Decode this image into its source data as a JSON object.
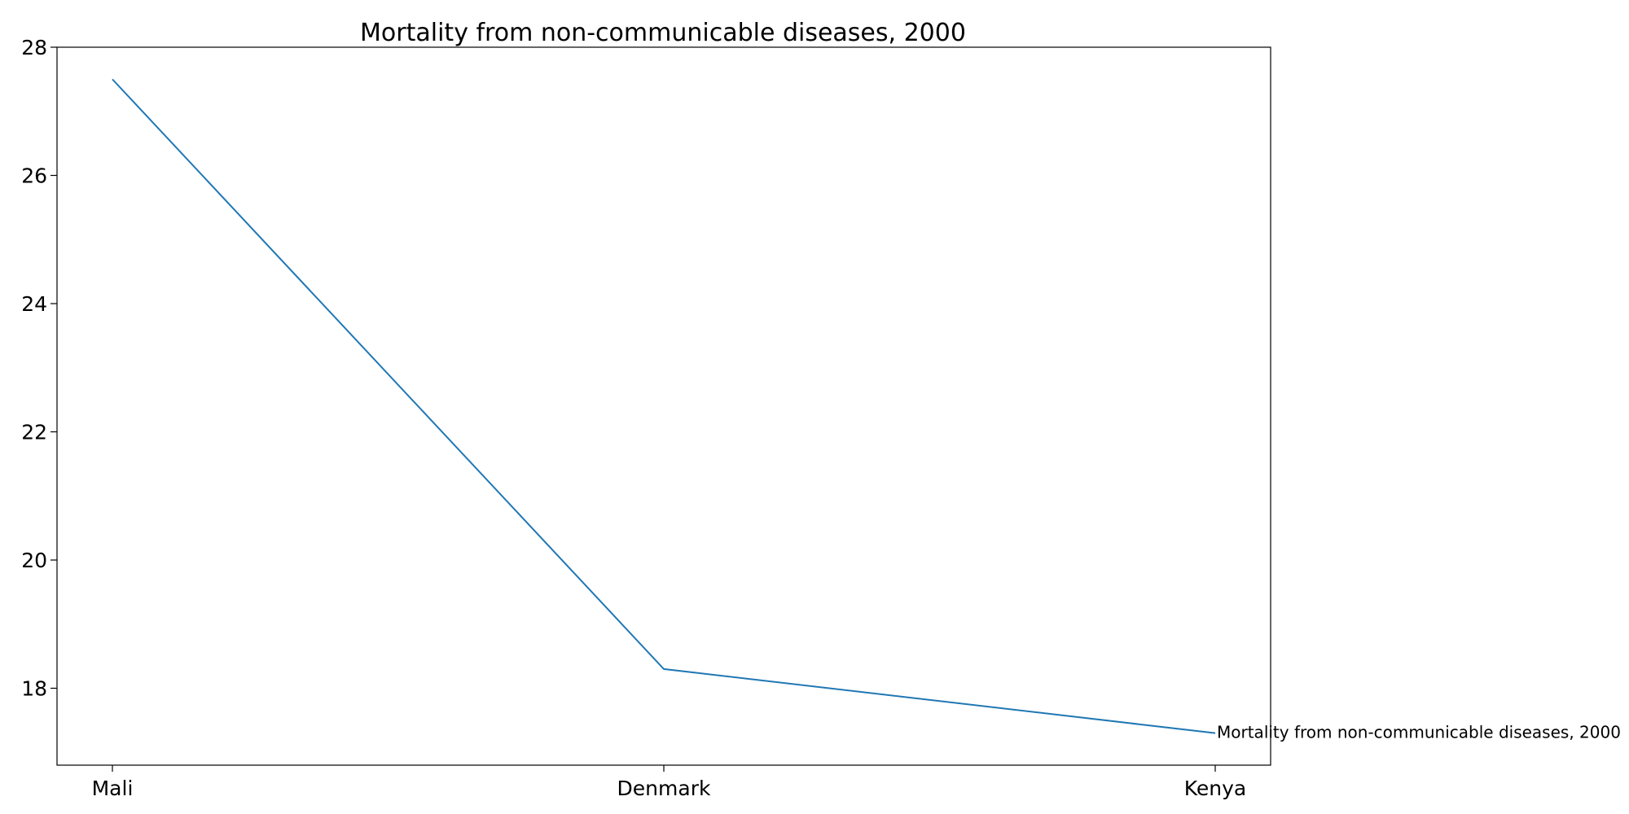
{
  "chart_data": {
    "type": "line",
    "title": "Mortality from non-communicable diseases, 2000",
    "xlabel": "",
    "ylabel": "",
    "categories": [
      "Mali",
      "Denmark",
      "Kenya"
    ],
    "series": [
      {
        "name": "Mortality from non-communicable diseases, 2000",
        "values": [
          27.5,
          18.3,
          17.3
        ],
        "color": "#1f77b4"
      }
    ],
    "ylim": [
      16.8,
      28.0
    ],
    "yticks": [
      18,
      20,
      22,
      24,
      26,
      28
    ],
    "grid": false,
    "legend": "none",
    "annotations": [
      {
        "text": "Mortality from non-communicable diseases, 2000",
        "category": "Kenya",
        "value": 17.3
      }
    ]
  }
}
